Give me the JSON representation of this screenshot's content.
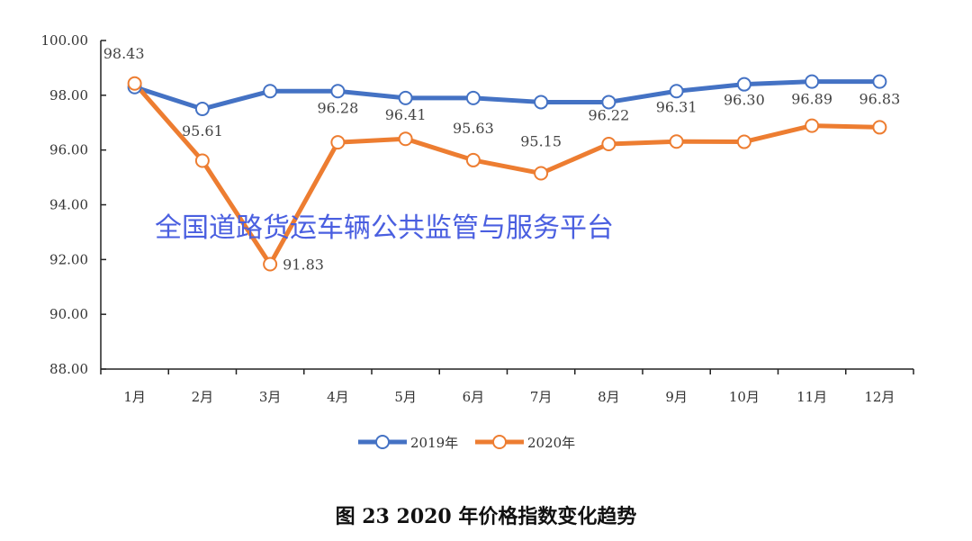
{
  "chart_data": {
    "type": "line",
    "title": "图 23  2020 年价格指数变化趋势",
    "categories": [
      "1月",
      "2月",
      "3月",
      "4月",
      "5月",
      "6月",
      "7月",
      "8月",
      "9月",
      "10月",
      "11月",
      "12月"
    ],
    "ylim": [
      88,
      100
    ],
    "yticks": [
      "88.00",
      "90.00",
      "92.00",
      "94.00",
      "96.00",
      "98.00",
      "100.00"
    ],
    "grid": false,
    "legend": "bottom",
    "series": [
      {
        "name": "2019年",
        "color": "#4472c4",
        "values": [
          98.3,
          97.5,
          98.15,
          98.15,
          97.9,
          97.9,
          97.75,
          97.75,
          98.15,
          98.4,
          98.5,
          98.5
        ],
        "labels": false
      },
      {
        "name": "2020年",
        "color": "#ed7d31",
        "values": [
          98.43,
          95.61,
          91.83,
          96.28,
          96.41,
          95.63,
          95.15,
          96.22,
          96.31,
          96.3,
          96.89,
          96.83
        ],
        "data_labels": [
          "98.43",
          "95.61",
          "91.83",
          "96.28",
          "96.41",
          "95.63",
          "95.15",
          "96.22",
          "96.31",
          "96.30",
          "96.89",
          "96.83"
        ]
      }
    ]
  },
  "watermark": "全国道路货运车辆公共监管与服务平台",
  "caption": "图 23  2020 年价格指数变化趋势"
}
